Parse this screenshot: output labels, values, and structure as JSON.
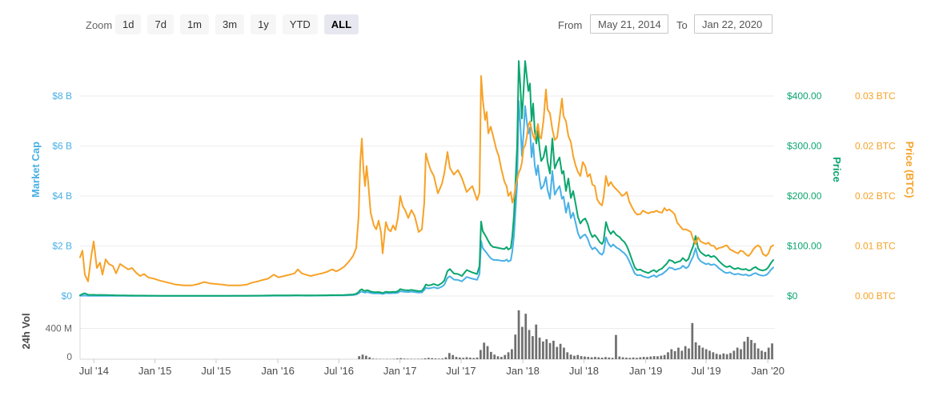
{
  "toolbar": {
    "zoom_label": "Zoom",
    "buttons": [
      "1d",
      "7d",
      "1m",
      "3m",
      "1y",
      "YTD",
      "ALL"
    ],
    "active_button": "ALL",
    "from_label": "From",
    "from_value": "May 21, 2014",
    "to_label": "To",
    "to_value": "Jan 22, 2020"
  },
  "axes": {
    "market_cap": {
      "title": "Market Cap",
      "labels": [
        "$8 B",
        "$6 B",
        "$4 B",
        "$2 B",
        "$0"
      ],
      "color": "#48b0e6"
    },
    "price": {
      "title": "Price",
      "labels": [
        "$400.00",
        "$300.00",
        "$200.00",
        "$100.00",
        "$0"
      ],
      "color": "#0ba66e"
    },
    "price_btc": {
      "title": "Price (BTC)",
      "labels": [
        "0.03 BTC",
        "0.02 BTC",
        "0.02 BTC",
        "0.01 BTC",
        "0.00 BTC"
      ],
      "color": "#f7a227"
    },
    "volume": {
      "title": "24h Vol",
      "labels": [
        "400 M",
        "0"
      ],
      "color": "#6f6f6f"
    }
  },
  "chart_data": {
    "type": "line",
    "title": "",
    "xlabel": "",
    "ylabel": "",
    "date_range": [
      "May 21, 2014",
      "Jan 22, 2020"
    ],
    "x_unit": "fraction of date range",
    "x_ticks": {
      "labels": [
        "Jul '14",
        "Jan '15",
        "Jul '15",
        "Jan '16",
        "Jul '16",
        "Jan '17",
        "Jul '17",
        "Jan '18",
        "Jul '18",
        "Jan '19",
        "Jul '19",
        "Jan '20"
      ],
      "positions": [
        0.02,
        0.108,
        0.196,
        0.285,
        0.373,
        0.461,
        0.549,
        0.638,
        0.726,
        0.815,
        0.902,
        0.991
      ]
    },
    "axis_max": {
      "market_cap_billions": 8,
      "price_usd": 400,
      "price_btc": 0.03,
      "volume_millions": 400
    },
    "grid": true,
    "x": [
      0,
      0.0035,
      0.0069,
      0.0115,
      0.0161,
      0.0196,
      0.0242,
      0.0288,
      0.0323,
      0.0369,
      0.0415,
      0.0473,
      0.0519,
      0.0577,
      0.0634,
      0.0692,
      0.075,
      0.0807,
      0.0865,
      0.0923,
      0.098,
      0.1061,
      0.1153,
      0.1269,
      0.1384,
      0.1499,
      0.1615,
      0.1707,
      0.1788,
      0.1869,
      0.1961,
      0.2053,
      0.2134,
      0.2215,
      0.2307,
      0.2399,
      0.248,
      0.2561,
      0.263,
      0.2711,
      0.2791,
      0.286,
      0.2941,
      0.3022,
      0.3091,
      0.3137,
      0.3195,
      0.3253,
      0.3322,
      0.3403,
      0.3483,
      0.3553,
      0.3633,
      0.3691,
      0.3749,
      0.3806,
      0.3875,
      0.3933,
      0.3979,
      0.4014,
      0.4037,
      0.406,
      0.4083,
      0.4106,
      0.4129,
      0.4152,
      0.4187,
      0.4233,
      0.4268,
      0.4302,
      0.4337,
      0.436,
      0.4406,
      0.4441,
      0.4475,
      0.451,
      0.4544,
      0.4579,
      0.4614,
      0.4648,
      0.4683,
      0.4729,
      0.4775,
      0.4821,
      0.4879,
      0.4925,
      0.496,
      0.4983,
      0.5017,
      0.5052,
      0.5098,
      0.5156,
      0.5213,
      0.5248,
      0.5294,
      0.5329,
      0.5386,
      0.5444,
      0.5502,
      0.5571,
      0.5652,
      0.5721,
      0.5755,
      0.5779,
      0.5802,
      0.5836,
      0.5859,
      0.5882,
      0.5917,
      0.5952,
      0.5998,
      0.6032,
      0.6067,
      0.6113,
      0.6148,
      0.6171,
      0.6206,
      0.6228,
      0.6252,
      0.6275,
      0.6298,
      0.6321,
      0.6344,
      0.6367,
      0.639,
      0.6413,
      0.6436,
      0.6459,
      0.6482,
      0.6505,
      0.6528,
      0.6551,
      0.6574,
      0.6598,
      0.6621,
      0.6644,
      0.6678,
      0.6713,
      0.6736,
      0.6771,
      0.6805,
      0.684,
      0.6874,
      0.6909,
      0.6944,
      0.6967,
      0.7001,
      0.7036,
      0.7071,
      0.7105,
      0.714,
      0.7174,
      0.7209,
      0.7243,
      0.7278,
      0.7313,
      0.7347,
      0.7382,
      0.7416,
      0.7451,
      0.7486,
      0.752,
      0.7543,
      0.7578,
      0.7612,
      0.7647,
      0.7682,
      0.7728,
      0.7774,
      0.7809,
      0.7843,
      0.7878,
      0.7912,
      0.7959,
      0.7993,
      0.8028,
      0.8074,
      0.8108,
      0.8143,
      0.8189,
      0.8235,
      0.827,
      0.8304,
      0.8339,
      0.8385,
      0.842,
      0.8454,
      0.8489,
      0.8535,
      0.857,
      0.8604,
      0.8651,
      0.8685,
      0.8731,
      0.8766,
      0.88,
      0.8835,
      0.887,
      0.8904,
      0.8939,
      0.8973,
      0.9019,
      0.9054,
      0.9089,
      0.9135,
      0.9169,
      0.9204,
      0.925,
      0.9285,
      0.9319,
      0.9365,
      0.94,
      0.9435,
      0.9481,
      0.9516,
      0.955,
      0.9596,
      0.9631,
      0.9666,
      0.97,
      0.9735,
      0.9769,
      0.9804,
      0.9839,
      0.9885,
      0.9919,
      0.9954,
      0.9988
    ],
    "series": [
      {
        "name": "Market Cap",
        "axis": "usd_billions",
        "color": "#48b0e6",
        "values": [
          0.005,
          0.012,
          0.018,
          0.008,
          0.007,
          0.008,
          0.007,
          0.008,
          0.007,
          0.008,
          0.007,
          0.006,
          0.005,
          0.005,
          0.005,
          0.004,
          0.004,
          0.004,
          0.004,
          0.004,
          0.003,
          0.003,
          0.003,
          0.003,
          0.003,
          0.003,
          0.003,
          0.004,
          0.004,
          0.004,
          0.004,
          0.004,
          0.004,
          0.005,
          0.005,
          0.005,
          0.006,
          0.007,
          0.008,
          0.009,
          0.013,
          0.014,
          0.012,
          0.013,
          0.016,
          0.016,
          0.015,
          0.014,
          0.013,
          0.016,
          0.017,
          0.019,
          0.022,
          0.021,
          0.022,
          0.026,
          0.033,
          0.04,
          0.06,
          0.105,
          0.16,
          0.18,
          0.148,
          0.135,
          0.155,
          0.148,
          0.122,
          0.106,
          0.102,
          0.109,
          0.096,
          0.082,
          0.117,
          0.11,
          0.108,
          0.118,
          0.114,
          0.132,
          0.193,
          0.175,
          0.166,
          0.158,
          0.175,
          0.156,
          0.139,
          0.145,
          0.243,
          0.33,
          0.301,
          0.316,
          0.345,
          0.303,
          0.376,
          0.449,
          0.727,
          0.786,
          0.656,
          0.643,
          0.585,
          0.762,
          0.69,
          0.647,
          0.884,
          2.2,
          1.92,
          1.8,
          1.72,
          1.63,
          1.51,
          1.45,
          1.44,
          1.43,
          1.41,
          1.4,
          1.46,
          1.38,
          1.43,
          1.79,
          2.39,
          3.44,
          4.49,
          7.8,
          6.9,
          5.6,
          6.5,
          7.6,
          7.0,
          6.5,
          6.74,
          5.55,
          6.11,
          5.23,
          4.84,
          5.23,
          4.68,
          4.28,
          4.41,
          4.76,
          4.25,
          3.89,
          5.0,
          4.05,
          4.25,
          4.4,
          3.89,
          3.97,
          3.33,
          3.73,
          3.11,
          3.33,
          2.94,
          2.51,
          2.3,
          2.41,
          2.46,
          2.3,
          2.03,
          1.87,
          1.94,
          1.84,
          1.71,
          1.65,
          1.75,
          2.35,
          2.1,
          1.97,
          2.06,
          1.94,
          1.87,
          1.78,
          1.71,
          1.59,
          1.4,
          1.11,
          0.9,
          0.83,
          0.84,
          0.79,
          0.76,
          0.73,
          0.79,
          0.83,
          0.76,
          0.83,
          0.87,
          0.95,
          1.03,
          1.14,
          1.11,
          1.05,
          1.08,
          1.11,
          1.21,
          1.11,
          1.18,
          1.4,
          1.59,
          1.91,
          1.53,
          1.4,
          1.34,
          1.27,
          1.3,
          1.24,
          1.27,
          1.21,
          1.11,
          1.02,
          0.95,
          0.92,
          0.95,
          0.89,
          0.86,
          0.89,
          0.86,
          0.84,
          0.86,
          0.81,
          0.83,
          0.89,
          0.92,
          0.86,
          0.83,
          0.81,
          0.84,
          0.92,
          1.05,
          1.14
        ]
      },
      {
        "name": "Price",
        "axis": "usd",
        "color": "#0ba66e",
        "values": [
          1.5,
          4.0,
          5.5,
          2.5,
          2.2,
          2.4,
          2.0,
          2.2,
          1.9,
          2.1,
          1.8,
          1.6,
          1.3,
          1.2,
          1.1,
          1.0,
          0.9,
          0.85,
          0.8,
          0.75,
          0.7,
          0.6,
          0.5,
          0.45,
          0.4,
          0.42,
          0.45,
          0.5,
          0.55,
          0.52,
          0.5,
          0.48,
          0.5,
          0.5,
          0.5,
          0.55,
          0.6,
          0.7,
          0.8,
          0.9,
          1.2,
          1.3,
          1.1,
          1.2,
          1.4,
          1.4,
          1.3,
          1.2,
          1.1,
          1.3,
          1.4,
          1.5,
          1.7,
          1.6,
          1.7,
          2.0,
          2.5,
          3.0,
          4.5,
          8.0,
          12.0,
          13.5,
          11.0,
          10.0,
          11.5,
          11.0,
          9.0,
          7.8,
          7.5,
          8.0,
          7.0,
          6.0,
          8.5,
          8.0,
          7.8,
          8.5,
          8.2,
          9.5,
          13.8,
          12.5,
          11.8,
          11.2,
          12.4,
          11.0,
          9.8,
          10.2,
          17.0,
          23.0,
          21.0,
          22.0,
          24.0,
          21.0,
          26.0,
          31.0,
          50.0,
          54.0,
          45.0,
          44.0,
          40.0,
          52.0,
          47.0,
          44.0,
          60.0,
          149.0,
          130.0,
          122.0,
          116.0,
          110.0,
          102.0,
          98.0,
          97.0,
          96.0,
          95.0,
          94.0,
          98.0,
          93.0,
          96.0,
          120.0,
          160.0,
          230.0,
          300.0,
          470.0,
          420.0,
          355.0,
          410.0,
          470.0,
          440.0,
          410.0,
          425.0,
          350.0,
          385.0,
          330.0,
          305.0,
          330.0,
          295.0,
          270.0,
          278.0,
          300.0,
          268.0,
          245.0,
          315.0,
          255.0,
          268.0,
          277.0,
          245.0,
          250.0,
          210.0,
          235.0,
          196.0,
          210.0,
          185.0,
          158.0,
          145.0,
          152.0,
          155.0,
          145.0,
          128.0,
          118.0,
          122.0,
          116.0,
          108.0,
          104.0,
          110.0,
          148.0,
          132.0,
          124.0,
          130.0,
          122.0,
          118.0,
          112.0,
          108.0,
          100.0,
          88.0,
          70.0,
          57.0,
          52.0,
          53.0,
          50.0,
          48.0,
          46.0,
          50.0,
          52.0,
          48.0,
          52.0,
          55.0,
          60.0,
          65.0,
          72.0,
          70.0,
          66.0,
          68.0,
          70.0,
          76.0,
          70.0,
          74.0,
          88.0,
          100.0,
          120.0,
          96.0,
          88.0,
          84.0,
          80.0,
          82.0,
          78.0,
          80.0,
          76.0,
          70.0,
          64.0,
          60.0,
          58.0,
          60.0,
          56.0,
          54.0,
          56.0,
          54.0,
          53.0,
          54.0,
          51.0,
          52.0,
          56.0,
          58.0,
          54.0,
          52.0,
          51.0,
          53.0,
          58.0,
          66.0,
          72.0
        ]
      },
      {
        "name": "Price (BTC)",
        "axis": "btc",
        "color": "#f7a227",
        "values": [
          0.0058,
          0.0068,
          0.0032,
          0.0022,
          0.006,
          0.0082,
          0.0042,
          0.005,
          0.0032,
          0.0055,
          0.0048,
          0.0045,
          0.0034,
          0.0048,
          0.0044,
          0.004,
          0.0042,
          0.0035,
          0.003,
          0.0033,
          0.0028,
          0.0026,
          0.0023,
          0.002,
          0.0017,
          0.0016,
          0.0016,
          0.0018,
          0.0021,
          0.0019,
          0.0018,
          0.0017,
          0.0016,
          0.0016,
          0.0016,
          0.0017,
          0.002,
          0.0022,
          0.0024,
          0.0026,
          0.0032,
          0.0028,
          0.003,
          0.0032,
          0.0034,
          0.004,
          0.0034,
          0.0032,
          0.003,
          0.0032,
          0.0034,
          0.0036,
          0.004,
          0.0037,
          0.004,
          0.0044,
          0.0052,
          0.006,
          0.0072,
          0.012,
          0.02,
          0.0236,
          0.019,
          0.0165,
          0.0195,
          0.017,
          0.0125,
          0.0106,
          0.01,
          0.0113,
          0.0095,
          0.0064,
          0.0111,
          0.01,
          0.0097,
          0.0106,
          0.0099,
          0.0117,
          0.015,
          0.0135,
          0.0129,
          0.0117,
          0.0129,
          0.012,
          0.0096,
          0.01,
          0.014,
          0.0214,
          0.02,
          0.0189,
          0.018,
          0.0154,
          0.0168,
          0.0184,
          0.0216,
          0.0192,
          0.0182,
          0.0189,
          0.0177,
          0.0156,
          0.0165,
          0.0144,
          0.0155,
          0.033,
          0.0296,
          0.0264,
          0.0276,
          0.0244,
          0.0254,
          0.024,
          0.022,
          0.021,
          0.0192,
          0.0172,
          0.0164,
          0.015,
          0.0156,
          0.014,
          0.0148,
          0.0165,
          0.0175,
          0.0185,
          0.019,
          0.02,
          0.0222,
          0.0226,
          0.0238,
          0.0256,
          0.0262,
          0.025,
          0.024,
          0.0235,
          0.0246,
          0.0258,
          0.024,
          0.0236,
          0.0264,
          0.031,
          0.028,
          0.0274,
          0.025,
          0.0234,
          0.0238,
          0.0266,
          0.0296,
          0.027,
          0.0262,
          0.024,
          0.0231,
          0.021,
          0.0196,
          0.0186,
          0.018,
          0.0201,
          0.0195,
          0.0179,
          0.0183,
          0.0167,
          0.0165,
          0.0145,
          0.0139,
          0.0136,
          0.0148,
          0.018,
          0.0165,
          0.0171,
          0.0165,
          0.016,
          0.0155,
          0.015,
          0.0152,
          0.0156,
          0.0142,
          0.0132,
          0.0126,
          0.0122,
          0.0123,
          0.0128,
          0.0126,
          0.0124,
          0.0126,
          0.0126,
          0.0128,
          0.0126,
          0.0125,
          0.0132,
          0.0128,
          0.013,
          0.0126,
          0.0122,
          0.011,
          0.0104,
          0.01,
          0.01,
          0.0098,
          0.0096,
          0.0085,
          0.0078,
          0.0088,
          0.0082,
          0.008,
          0.0078,
          0.008,
          0.0076,
          0.0075,
          0.007,
          0.0072,
          0.0073,
          0.0075,
          0.0076,
          0.007,
          0.0068,
          0.0066,
          0.0064,
          0.0068,
          0.0067,
          0.0062,
          0.006,
          0.0064,
          0.007,
          0.0074,
          0.0076,
          0.0073,
          0.0063,
          0.006,
          0.0064,
          0.0074,
          0.0076
        ]
      }
    ],
    "volume_series": {
      "name": "24h Vol",
      "unit": "usd_millions",
      "color": "#6f6f6f",
      "values": [
        0,
        0,
        0,
        0,
        0,
        0,
        0,
        0,
        0,
        0,
        0,
        0,
        0,
        0,
        0,
        0,
        0,
        0,
        0,
        0,
        0,
        0,
        0,
        0,
        0,
        0,
        0,
        0,
        0,
        0,
        0,
        0,
        0,
        0,
        0,
        0,
        0,
        0,
        0,
        0,
        0,
        0,
        0,
        0,
        0,
        0,
        0,
        0,
        0,
        0,
        0,
        0,
        0,
        0,
        0,
        0,
        0,
        0,
        0,
        0,
        0,
        0,
        0,
        0,
        0,
        0,
        0,
        0,
        0,
        0,
        0,
        0,
        0,
        0,
        0,
        0,
        0,
        0,
        0,
        0,
        40,
        60,
        45,
        25,
        8,
        5,
        4,
        3,
        4,
        3,
        5,
        10,
        14,
        8,
        6,
        5,
        4,
        5,
        6,
        12,
        18,
        14,
        10,
        8,
        10,
        25,
        80,
        55,
        30,
        22,
        18,
        26,
        20,
        16,
        22,
        120,
        215,
        170,
        95,
        60,
        38,
        30,
        55,
        90,
        130,
        320,
        635,
        420,
        590,
        380,
        300,
        450,
        280,
        230,
        260,
        210,
        240,
        160,
        200,
        150,
        90,
        60,
        45,
        55,
        40,
        35,
        30,
        25,
        30,
        25,
        20,
        28,
        22,
        18,
        315,
        35,
        25,
        20,
        18,
        22,
        18,
        25,
        30,
        28,
        35,
        40,
        38,
        45,
        55,
        90,
        130,
        105,
        150,
        110,
        170,
        140,
        470,
        220,
        180,
        150,
        130,
        110,
        90,
        70,
        60,
        75,
        65,
        80,
        110,
        150,
        130,
        230,
        290,
        250,
        210,
        140,
        110,
        95,
        150,
        205
      ]
    }
  }
}
